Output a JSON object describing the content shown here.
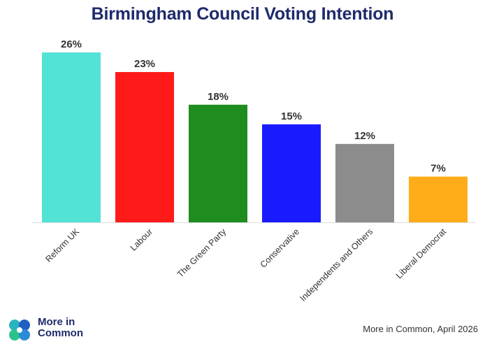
{
  "chart_data": {
    "type": "bar",
    "title": "Birmingham Council Voting Intention",
    "categories": [
      "Reform UK",
      "Labour",
      "The Green Party",
      "Conservative",
      "Independents and Others",
      "Liberal Democrat"
    ],
    "values": [
      26,
      23,
      18,
      15,
      12,
      7
    ],
    "value_labels": [
      "26%",
      "23%",
      "18%",
      "15%",
      "12%",
      "7%"
    ],
    "colors": [
      "#52e3d6",
      "#ff1a1a",
      "#1e8c1e",
      "#1a1aff",
      "#8c8c8c",
      "#ffac19"
    ],
    "ylim": [
      0,
      26
    ],
    "grid": false,
    "legend": "none"
  },
  "branding": {
    "logo_line1": "More in",
    "logo_line2": "Common",
    "source": "More in Common, April 2026"
  }
}
